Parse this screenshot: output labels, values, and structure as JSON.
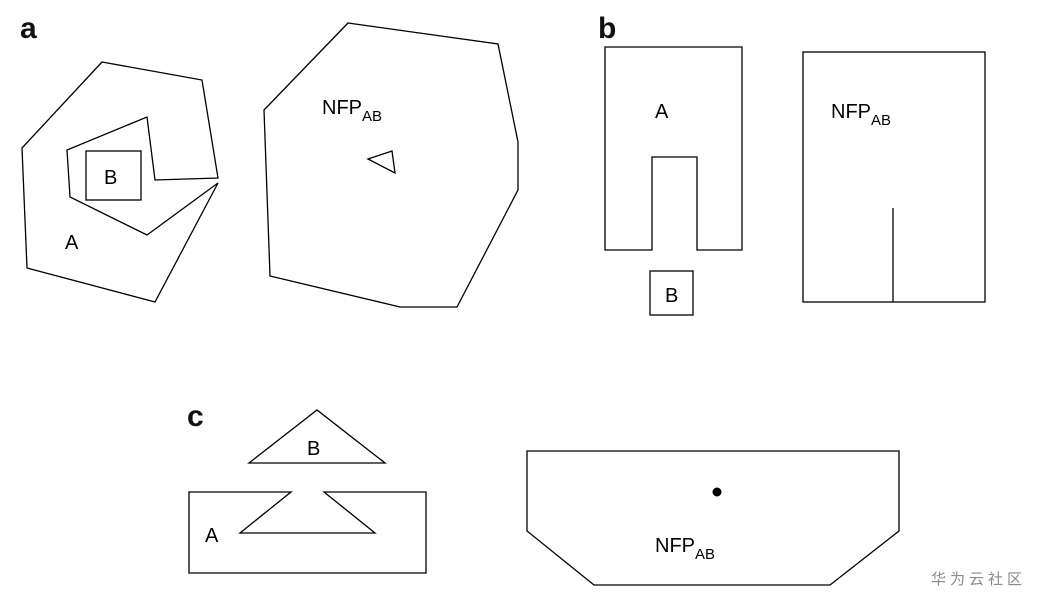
{
  "panels": {
    "a": {
      "letter": "a",
      "polygon_a_label": "A",
      "polygon_b_label": "B",
      "nfp_main": "NFP",
      "nfp_sub": "AB"
    },
    "b": {
      "letter": "b",
      "polygon_a_label": "A",
      "polygon_b_label": "B",
      "nfp_main": "NFP",
      "nfp_sub": "AB"
    },
    "c": {
      "letter": "c",
      "polygon_a_label": "A",
      "polygon_b_label": "B",
      "nfp_main": "NFP",
      "nfp_sub": "AB"
    }
  },
  "watermark": "华为云社区"
}
